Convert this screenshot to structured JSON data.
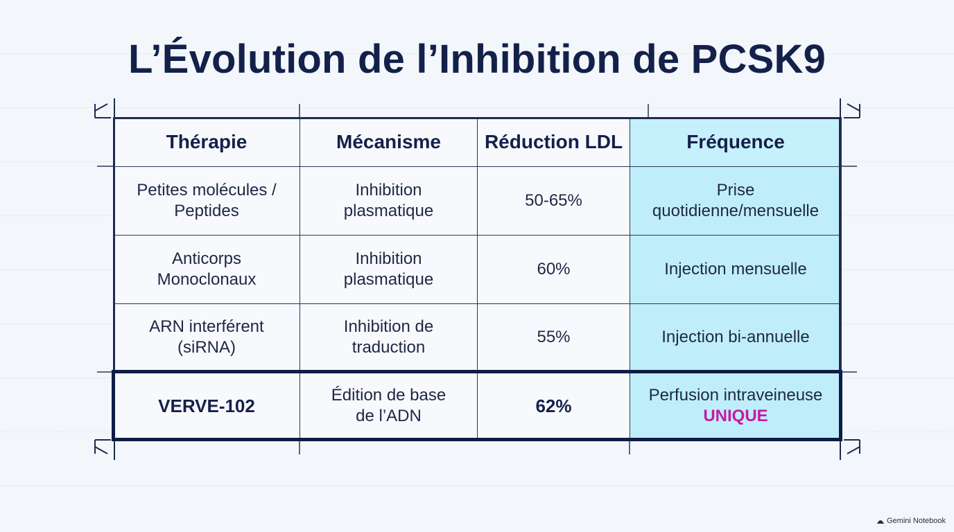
{
  "title": "L’Évolution de l’Inhibition de PCSK9",
  "table": {
    "headers": [
      "Thérapie",
      "Mécanisme",
      "Réduction LDL",
      "Fréquence"
    ],
    "rows": [
      {
        "therapie": [
          "Petites molécules /",
          "Peptides"
        ],
        "mecanisme": [
          "Inhibition",
          "plasmatique"
        ],
        "reduction": "50-65%",
        "frequence": [
          "Prise",
          "quotidienne/mensuelle"
        ]
      },
      {
        "therapie": [
          "Anticorps",
          "Monoclonaux"
        ],
        "mecanisme": [
          "Inhibition",
          "plasmatique"
        ],
        "reduction": "60%",
        "frequence": [
          "Injection mensuelle"
        ]
      },
      {
        "therapie": [
          "ARN interférent",
          "(siRNA)"
        ],
        "mecanisme": [
          "Inhibition de",
          "traduction"
        ],
        "reduction": "55%",
        "frequence": [
          "Injection bi-annuelle"
        ]
      },
      {
        "therapie": [
          "VERVE-102"
        ],
        "mecanisme": [
          "Édition de base",
          "de l’ADN"
        ],
        "reduction": "62%",
        "frequence": [
          "Perfusion intraveineuse",
          "UNIQUE"
        ]
      }
    ]
  },
  "colors": {
    "highlight_column": "#bfeefa",
    "accent": "#c51aa0",
    "frame": "#1d2a52"
  },
  "watermark": "Gemini Notebook"
}
